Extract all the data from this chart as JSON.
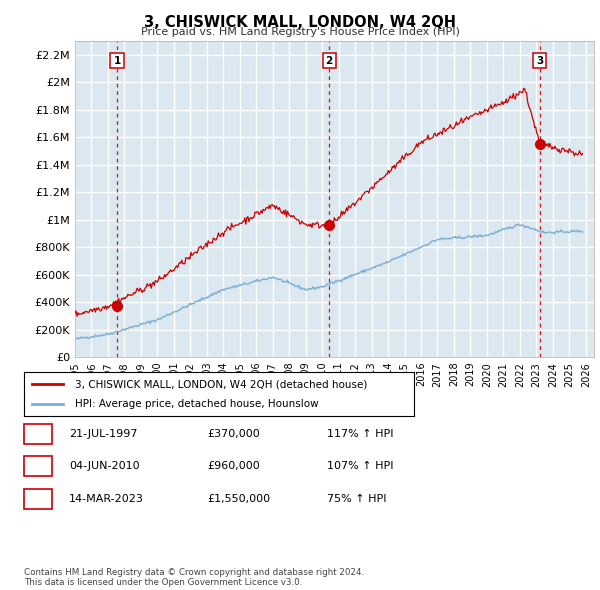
{
  "title": "3, CHISWICK MALL, LONDON, W4 2QH",
  "subtitle": "Price paid vs. HM Land Registry's House Price Index (HPI)",
  "xlim": [
    1995.0,
    2026.5
  ],
  "ylim": [
    0,
    2300000
  ],
  "yticks": [
    0,
    200000,
    400000,
    600000,
    800000,
    1000000,
    1200000,
    1400000,
    1600000,
    1800000,
    2000000,
    2200000
  ],
  "ytick_labels": [
    "£0",
    "£200K",
    "£400K",
    "£600K",
    "£800K",
    "£1M",
    "£1.2M",
    "£1.4M",
    "£1.6M",
    "£1.8M",
    "£2M",
    "£2.2M"
  ],
  "xtick_years": [
    1995,
    1996,
    1997,
    1998,
    1999,
    2000,
    2001,
    2002,
    2003,
    2004,
    2005,
    2006,
    2007,
    2008,
    2009,
    2010,
    2011,
    2012,
    2013,
    2014,
    2015,
    2016,
    2017,
    2018,
    2019,
    2020,
    2021,
    2022,
    2023,
    2024,
    2025,
    2026
  ],
  "sale_dates": [
    1997.55,
    2010.42,
    2023.2
  ],
  "sale_prices": [
    370000,
    960000,
    1550000
  ],
  "sale_labels": [
    "1",
    "2",
    "3"
  ],
  "red_line_color": "#cc0000",
  "blue_line_color": "#7bafd4",
  "dashed_line_color": "#cc0000",
  "background_color": "#dce8f0",
  "grid_color": "#ffffff",
  "legend_entries": [
    "3, CHISWICK MALL, LONDON, W4 2QH (detached house)",
    "HPI: Average price, detached house, Hounslow"
  ],
  "table_rows": [
    [
      "1",
      "21-JUL-1997",
      "£370,000",
      "117% ↑ HPI"
    ],
    [
      "2",
      "04-JUN-2010",
      "£960,000",
      "107% ↑ HPI"
    ],
    [
      "3",
      "14-MAR-2023",
      "£1,550,000",
      "75% ↑ HPI"
    ]
  ],
  "footnote": "Contains HM Land Registry data © Crown copyright and database right 2024.\nThis data is licensed under the Open Government Licence v3.0."
}
